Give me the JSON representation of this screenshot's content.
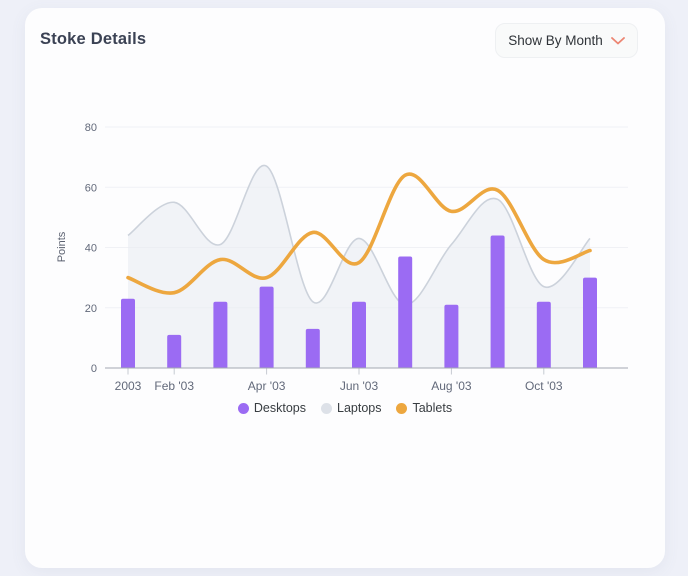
{
  "page": {
    "background": "#eef0f8"
  },
  "card": {
    "title": "Stoke Details"
  },
  "dropdown": {
    "label": "Show By Month",
    "chevron_color": "#ec8572"
  },
  "chart_data": {
    "type": "mixed",
    "title": "",
    "ylabel": "Points",
    "y_ticks": [
      0,
      20,
      40,
      60,
      80
    ],
    "ylim": [
      0,
      80
    ],
    "grid": true,
    "legend_position": "bottom",
    "points_count": 11,
    "visible_x_ticks": [
      {
        "label": "2003",
        "point": 0
      },
      {
        "label": "Feb '03",
        "point": 1
      },
      {
        "label": "Apr '03",
        "point": 3
      },
      {
        "label": "Jun '03",
        "point": 5
      },
      {
        "label": "Aug '03",
        "point": 7
      },
      {
        "label": "Oct '03",
        "point": 9
      }
    ],
    "series": [
      {
        "name": "Desktops",
        "type": "column",
        "color": "#9b6bf3",
        "values": [
          23,
          11,
          22,
          27,
          13,
          22,
          37,
          21,
          44,
          22,
          30
        ]
      },
      {
        "name": "Laptops",
        "type": "area",
        "color": "#ccd2db",
        "fill": "#e9ecf1",
        "values": [
          44,
          55,
          41,
          67,
          22,
          43,
          21,
          41,
          56,
          27,
          43
        ]
      },
      {
        "name": "Tablets",
        "type": "line",
        "color": "#eda73f",
        "values": [
          30,
          25,
          36,
          30,
          45,
          35,
          64,
          52,
          59,
          36,
          39
        ]
      }
    ],
    "legend": [
      {
        "label": "Desktops",
        "color": "#9b6bf3"
      },
      {
        "label": "Laptops",
        "color": "#dde1e8"
      },
      {
        "label": "Tablets",
        "color": "#eda73f"
      }
    ],
    "colors": {
      "grid_line": "#f0f1f5",
      "axis_line": "#a3a8b2",
      "tick_mark": "#c6cad2",
      "tick_label": "#62697a",
      "axis_title": "#5b6170"
    }
  }
}
